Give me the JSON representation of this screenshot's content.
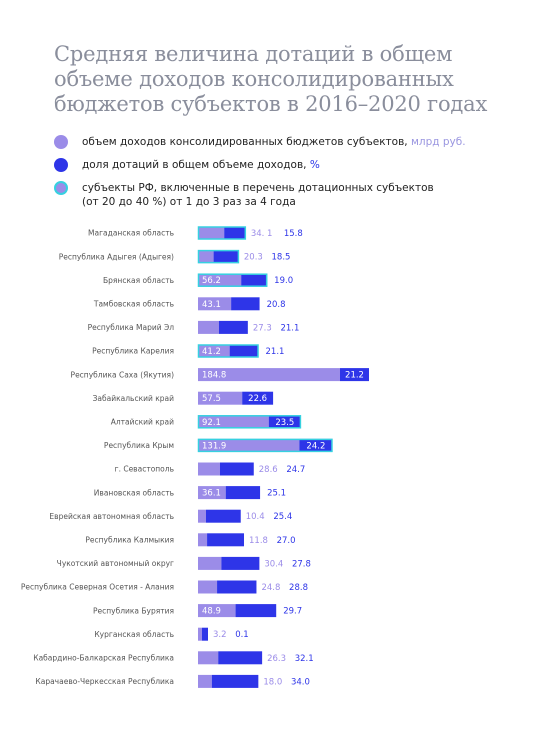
{
  "title": "Средняя величина дотаций в общем объеме доходов консолидированных бюджетов субъектов в 2016–2020 годах",
  "legend": {
    "revenue_label": "объем доходов консолидированных бюджетов субъектов,",
    "revenue_unit": "млрд руб.",
    "share_label": "доля дотаций в общем объеме доходов,",
    "share_unit": "%",
    "subsidized_line1": "субъекты РФ, включенные в перечень дотационных субъектов",
    "subsidized_line2": "(от 20 до 40 %) от 1 до 3 раз за 4 года"
  },
  "colors": {
    "revenue": "#9b8ce8",
    "share": "#2e35e8",
    "highlight": "#36d1e0",
    "revenue_text": "#9b8ce8",
    "share_text": "#2e35e8"
  },
  "chart_data": {
    "type": "bar",
    "orientation": "horizontal",
    "stacked": true,
    "categories": [
      "Магаданская область",
      "Республика Адыгея (Адыгея)",
      "Брянская область",
      "Тамбовская область",
      "Республика Марий Эл",
      "Республика Карелия",
      "Республика Саха (Якутия)",
      "Забайкальский край",
      "Алтайский край",
      "Республика Крым",
      "г. Севастополь",
      "Ивановская область",
      "Еврейская автономная область",
      "Республика Калмыкия",
      "Чукотский автономный округ",
      "Республика Северная Осетия - Алания",
      "Республика Бурятия",
      "Курганская область",
      "Кабардино-Балкарская Республика",
      "Карачаево-Черкесская Республика"
    ],
    "series": [
      {
        "name": "объем доходов консолидированных бюджетов субъектов, млрд руб.",
        "values": [
          34.1,
          20.3,
          56.2,
          43.1,
          27.3,
          41.2,
          184.8,
          57.5,
          92.1,
          131.9,
          28.6,
          36.1,
          10.4,
          11.8,
          30.4,
          24.8,
          48.9,
          3.2,
          26.3,
          18.0
        ],
        "labels": [
          "34. 1",
          "20.3",
          "56.2",
          "43.1",
          "27.3",
          "41.2",
          "184.8",
          "57.5",
          "92.1",
          "131.9",
          "28.6",
          "36.1",
          "10.4",
          "11.8",
          "30.4",
          "24.8",
          "48.9",
          "3.2",
          "26.3",
          "18.0"
        ]
      },
      {
        "name": "доля дотаций в общем объеме доходов, %",
        "values": [
          15.8,
          18.5,
          19.0,
          20.8,
          21.1,
          21.1,
          21.2,
          22.6,
          23.5,
          24.2,
          24.7,
          25.1,
          25.4,
          27.0,
          27.8,
          28.8,
          29.7,
          0.1,
          32.1,
          34.0
        ],
        "labels": [
          "15.8",
          "18.5",
          "19.0",
          "20.8",
          "21.1",
          "21.1",
          "21.2",
          "22.6",
          "23.5",
          "24.2",
          "24.7",
          "25.1",
          "25.4",
          "27.0",
          "27.8",
          "28.8",
          "29.7",
          "0.1",
          "32.1",
          "34.0"
        ]
      }
    ],
    "highlighted": [
      true,
      true,
      true,
      false,
      false,
      true,
      false,
      false,
      true,
      true,
      false,
      false,
      false,
      false,
      false,
      false,
      false,
      false,
      false,
      false
    ]
  }
}
